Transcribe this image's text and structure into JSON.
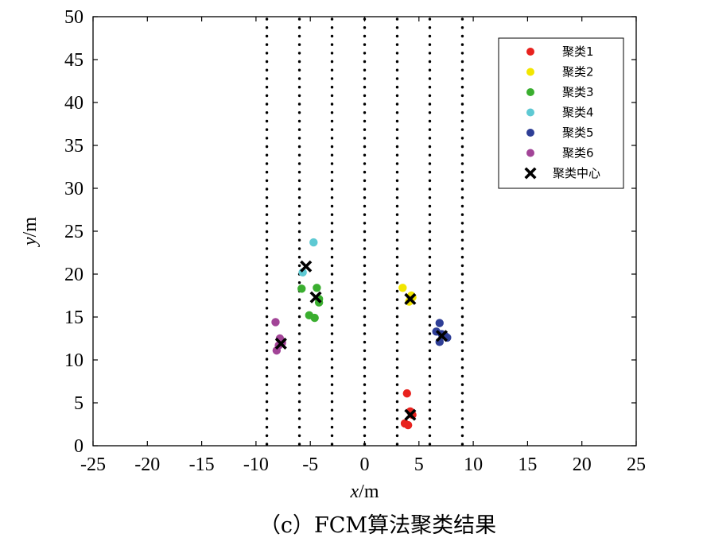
{
  "chart_data": {
    "type": "scatter",
    "caption": "（c）FCM算法聚类结果",
    "xlabel_italic": "x",
    "xlabel_unit": "/m",
    "ylabel_italic": "y",
    "ylabel_unit": "/m",
    "xlim": [
      -25,
      25
    ],
    "ylim": [
      0,
      50
    ],
    "xticks": [
      -25,
      -20,
      -15,
      -10,
      -5,
      0,
      5,
      10,
      15,
      20,
      25
    ],
    "yticks": [
      0,
      5,
      10,
      15,
      20,
      25,
      30,
      35,
      40,
      45,
      50
    ],
    "grid": false,
    "vertical_dotted_lines": [
      -9,
      -6,
      -3,
      0,
      3,
      6,
      9
    ],
    "legend_position": "top-right",
    "series": [
      {
        "name": "聚类1",
        "color": "#e8221e",
        "points": [
          [
            3.9,
            6.1
          ],
          [
            3.7,
            2.6
          ],
          [
            4.0,
            2.4
          ],
          [
            4.4,
            3.6
          ],
          [
            4.2,
            4.0
          ]
        ]
      },
      {
        "name": "聚类2",
        "color": "#f2e600",
        "points": [
          [
            3.5,
            18.4
          ],
          [
            4.2,
            17.0
          ],
          [
            4.4,
            17.3
          ],
          [
            4.1,
            16.8
          ],
          [
            4.3,
            17.5
          ]
        ]
      },
      {
        "name": "聚类3",
        "color": "#3aae2f",
        "points": [
          [
            -5.8,
            18.3
          ],
          [
            -4.4,
            18.4
          ],
          [
            -4.2,
            17.1
          ],
          [
            -4.2,
            16.7
          ],
          [
            -5.1,
            15.2
          ],
          [
            -4.6,
            14.9
          ]
        ]
      },
      {
        "name": "聚类4",
        "color": "#5ec9d3",
        "points": [
          [
            -4.7,
            23.7
          ],
          [
            -5.7,
            20.2
          ]
        ]
      },
      {
        "name": "聚类5",
        "color": "#2e3e96",
        "points": [
          [
            6.9,
            14.3
          ],
          [
            6.6,
            13.3
          ],
          [
            7.1,
            13.0
          ],
          [
            7.6,
            12.6
          ],
          [
            6.9,
            12.1
          ],
          [
            7.4,
            12.8
          ]
        ]
      },
      {
        "name": "聚类6",
        "color": "#a24497",
        "points": [
          [
            -8.2,
            14.4
          ],
          [
            -7.8,
            12.5
          ],
          [
            -7.9,
            11.7
          ],
          [
            -8.1,
            11.1
          ],
          [
            -7.6,
            12.0
          ]
        ]
      }
    ],
    "centers": {
      "name": "聚类中心",
      "color": "#000000",
      "points": [
        [
          -5.4,
          20.9
        ],
        [
          -4.5,
          17.3
        ],
        [
          -7.7,
          11.9
        ],
        [
          4.2,
          17.1
        ],
        [
          4.2,
          3.6
        ],
        [
          7.1,
          12.8
        ]
      ]
    }
  }
}
